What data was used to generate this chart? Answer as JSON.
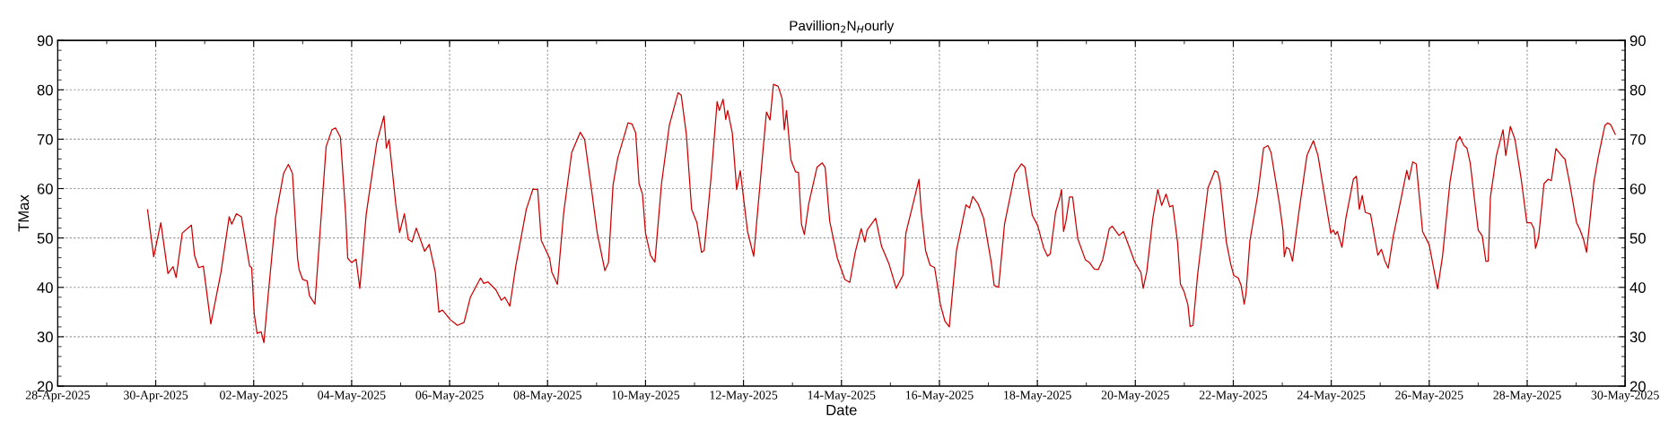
{
  "chart_data": {
    "type": "line",
    "title": "Pavillion$_{2}$N$_{H}$ourly",
    "xlabel": "Date",
    "ylabel": "TMax",
    "xlim": [
      "2025-04-28",
      "2025-05-30"
    ],
    "xticks": [
      {
        "value": "2025-04-28",
        "label": "28-Apr-2025"
      },
      {
        "value": "2025-04-30",
        "label": "30-Apr-2025"
      },
      {
        "value": "2025-05-02",
        "label": "02-May-2025"
      },
      {
        "value": "2025-05-04",
        "label": "04-May-2025"
      },
      {
        "value": "2025-05-06",
        "label": "06-May-2025"
      },
      {
        "value": "2025-05-08",
        "label": "08-May-2025"
      },
      {
        "value": "2025-05-10",
        "label": "10-May-2025"
      },
      {
        "value": "2025-05-12",
        "label": "12-May-2025"
      },
      {
        "value": "2025-05-14",
        "label": "14-May-2025"
      },
      {
        "value": "2025-05-16",
        "label": "16-May-2025"
      },
      {
        "value": "2025-05-18",
        "label": "18-May-2025"
      },
      {
        "value": "2025-05-20",
        "label": "20-May-2025"
      },
      {
        "value": "2025-05-22",
        "label": "22-May-2025"
      },
      {
        "value": "2025-05-24",
        "label": "24-May-2025"
      },
      {
        "value": "2025-05-26",
        "label": "26-May-2025"
      },
      {
        "value": "2025-05-28",
        "label": "28-May-2025"
      },
      {
        "value": "2025-05-30",
        "label": "30-May-2025"
      }
    ],
    "ylim": [
      20,
      90
    ],
    "yticks": [
      20,
      30,
      40,
      50,
      60,
      70,
      80,
      90
    ],
    "y2lim": [
      20,
      90
    ],
    "y2ticks": [
      20,
      30,
      40,
      50,
      60,
      70,
      80,
      90
    ],
    "grid": true,
    "marker": "none",
    "line_style": "solid",
    "series": [
      {
        "color": "#cc0000",
        "x": [
          "2025-04-29T20:00",
          "2025-04-29T23:00",
          "2025-04-30T02:30",
          "2025-04-30T06:00",
          "2025-04-30T08:30",
          "2025-04-30T10:00",
          "2025-04-30T13:00",
          "2025-04-30T17:30",
          "2025-04-30T19:00",
          "2025-04-30T21:00",
          "2025-04-30T23:20",
          "2025-05-01T03:00",
          "2025-05-01T08:00",
          "2025-05-01T12:00",
          "2025-05-01T13:15",
          "2025-05-01T15:30",
          "2025-05-01T18:00",
          "2025-05-01T22:00",
          "2025-05-01T23:00",
          "2025-05-02T00:15",
          "2025-05-02T01:40",
          "2025-05-02T03:40",
          "2025-05-02T05:00",
          "2025-05-02T07:00",
          "2025-05-02T10:40",
          "2025-05-02T14:40",
          "2025-05-02T17:00",
          "2025-05-02T19:00",
          "2025-05-02T21:30",
          "2025-05-02T22:15",
          "2025-05-03T00:00",
          "2025-05-03T02:10",
          "2025-05-03T03:20",
          "2025-05-03T06:00",
          "2025-05-03T11:30",
          "2025-05-03T14:20",
          "2025-05-03T16:05",
          "2025-05-03T18:30",
          "2025-05-03T21:00",
          "2025-05-03T22:05",
          "2025-05-04T00:00",
          "2025-05-04T02:10",
          "2025-05-04T04:00",
          "2025-05-04T07:10",
          "2025-05-04T12:20",
          "2025-05-04T15:50",
          "2025-05-04T17:00",
          "2025-05-04T18:20",
          "2025-05-04T21:35",
          "2025-05-04T23:30",
          "2025-05-05T01:50",
          "2025-05-05T03:45",
          "2025-05-05T05:35",
          "2025-05-05T07:40",
          "2025-05-05T11:45",
          "2025-05-05T14:00",
          "2025-05-05T17:00",
          "2025-05-05T18:45",
          "2025-05-05T20:30",
          "2025-05-06T00:15",
          "2025-05-06T03:50",
          "2025-05-06T07:05",
          "2025-05-06T10:10",
          "2025-05-06T15:10",
          "2025-05-06T16:45",
          "2025-05-06T18:50",
          "2025-05-06T22:40",
          "2025-05-07T01:20",
          "2025-05-07T03:05",
          "2025-05-07T05:30",
          "2025-05-07T08:25",
          "2025-05-07T13:35",
          "2025-05-07T16:50",
          "2025-05-07T19:10",
          "2025-05-07T20:55",
          "2025-05-08T01:00",
          "2025-05-08T02:05",
          "2025-05-08T04:50",
          "2025-05-08T07:55",
          "2025-05-08T11:50",
          "2025-05-08T16:00",
          "2025-05-08T18:10",
          "2025-05-08T21:50",
          "2025-05-09T00:20",
          "2025-05-09T04:05",
          "2025-05-09T05:50",
          "2025-05-09T08:05",
          "2025-05-09T10:20",
          "2025-05-09T15:25",
          "2025-05-09T17:20",
          "2025-05-09T19:10",
          "2025-05-09T20:50",
          "2025-05-09T22:30",
          "2025-05-10T00:00",
          "2025-05-10T02:25",
          "2025-05-10T04:35",
          "2025-05-10T07:50",
          "2025-05-10T11:40",
          "2025-05-10T15:55",
          "2025-05-10T17:30",
          "2025-05-10T20:00",
          "2025-05-10T22:35",
          "2025-05-11T01:10",
          "2025-05-11T03:25",
          "2025-05-11T04:45",
          "2025-05-11T08:10",
          "2025-05-11T11:05",
          "2025-05-11T12:10",
          "2025-05-11T14:00",
          "2025-05-11T15:20",
          "2025-05-11T16:15",
          "2025-05-11T18:30",
          "2025-05-11T20:40",
          "2025-05-11T22:25",
          "2025-05-12T02:00",
          "2025-05-12T05:00",
          "2025-05-12T09:20",
          "2025-05-12T11:15",
          "2025-05-12T13:00",
          "2025-05-12T14:40",
          "2025-05-12T17:00",
          "2025-05-12T18:55",
          "2025-05-12T20:00",
          "2025-05-12T21:05",
          "2025-05-12T23:15",
          "2025-05-13T01:30",
          "2025-05-13T02:55",
          "2025-05-13T04:25",
          "2025-05-13T05:50",
          "2025-05-13T08:00",
          "2025-05-13T12:00",
          "2025-05-13T14:35",
          "2025-05-13T16:00",
          "2025-05-13T18:15",
          "2025-05-13T22:00",
          "2025-05-14T01:40",
          "2025-05-14T04:05",
          "2025-05-14T06:45",
          "2025-05-14T09:40",
          "2025-05-14T11:25",
          "2025-05-14T12:35",
          "2025-05-14T16:45",
          "2025-05-14T19:40",
          "2025-05-14T23:20",
          "2025-05-15T02:50",
          "2025-05-15T06:10",
          "2025-05-15T07:35",
          "2025-05-15T14:00",
          "2025-05-15T15:05",
          "2025-05-15T17:15",
          "2025-05-15T19:25",
          "2025-05-15T21:40",
          "2025-05-16T00:30",
          "2025-05-16T02:40",
          "2025-05-16T04:50",
          "2025-05-16T08:20",
          "2025-05-16T13:00",
          "2025-05-16T14:45",
          "2025-05-16T16:20",
          "2025-05-16T18:50",
          "2025-05-16T21:40",
          "2025-05-17T01:25",
          "2025-05-17T02:50",
          "2025-05-17T05:00",
          "2025-05-17T07:55",
          "2025-05-17T13:00",
          "2025-05-17T16:15",
          "2025-05-17T17:55",
          "2025-05-17T21:30",
          "2025-05-18T00:10",
          "2025-05-18T03:05",
          "2025-05-18T05:00",
          "2025-05-18T06:20",
          "2025-05-18T08:55",
          "2025-05-18T11:05",
          "2025-05-18T11:50",
          "2025-05-18T12:50",
          "2025-05-18T14:00",
          "2025-05-18T15:45",
          "2025-05-18T17:15",
          "2025-05-18T19:50",
          "2025-05-18T23:30",
          "2025-05-19T01:20",
          "2025-05-19T03:55",
          "2025-05-19T05:50",
          "2025-05-19T08:00",
          "2025-05-19T11:15",
          "2025-05-19T12:40",
          "2025-05-19T16:00",
          "2025-05-19T18:10",
          "2025-05-19T20:05",
          "2025-05-19T23:50",
          "2025-05-20T02:45",
          "2025-05-20T03:50",
          "2025-05-20T05:35",
          "2025-05-20T08:35",
          "2025-05-20T11:00",
          "2025-05-20T12:55",
          "2025-05-20T15:05",
          "2025-05-20T16:50",
          "2025-05-20T18:20",
          "2025-05-20T20:40",
          "2025-05-20T22:05",
          "2025-05-20T23:50",
          "2025-05-21T01:45",
          "2025-05-21T02:50",
          "2025-05-21T04:15",
          "2025-05-21T06:30",
          "2025-05-21T11:35",
          "2025-05-21T14:55",
          "2025-05-21T16:20",
          "2025-05-21T17:30",
          "2025-05-21T20:35",
          "2025-05-21T22:45",
          "2025-05-22T00:15",
          "2025-05-22T02:25",
          "2025-05-22T03:50",
          "2025-05-22T05:20",
          "2025-05-22T06:15",
          "2025-05-22T08:10",
          "2025-05-22T11:55",
          "2025-05-22T14:50",
          "2025-05-22T17:00",
          "2025-05-22T18:30",
          "2025-05-22T22:35",
          "2025-05-23T00:20",
          "2025-05-23T01:00",
          "2025-05-23T02:00",
          "2025-05-23T03:30",
          "2025-05-23T05:00",
          "2025-05-23T08:20",
          "2025-05-23T12:05",
          "2025-05-23T15:15",
          "2025-05-23T17:30",
          "2025-05-23T20:50",
          "2025-05-23T23:45",
          "2025-05-24T01:00",
          "2025-05-24T02:00",
          "2025-05-24T03:00",
          "2025-05-24T05:15",
          "2025-05-24T07:10",
          "2025-05-24T10:50",
          "2025-05-24T12:20",
          "2025-05-24T13:45",
          "2025-05-24T15:10",
          "2025-05-24T16:40",
          "2025-05-24T19:15",
          "2025-05-24T22:50",
          "2025-05-25T00:35",
          "2025-05-25T02:20",
          "2025-05-25T03:55",
          "2025-05-25T06:25",
          "2025-05-25T10:05",
          "2025-05-25T13:00",
          "2025-05-25T14:05",
          "2025-05-25T15:55",
          "2025-05-25T17:40",
          "2025-05-25T20:45",
          "2025-05-26T00:00",
          "2025-05-26T04:05",
          "2025-05-26T06:30",
          "2025-05-26T10:10",
          "2025-05-26T13:25",
          "2025-05-26T15:00",
          "2025-05-26T17:00",
          "2025-05-26T18:30",
          "2025-05-26T20:05",
          "2025-05-26T22:35",
          "2025-05-27T00:00",
          "2025-05-27T02:00",
          "2025-05-27T03:45",
          "2025-05-27T04:55",
          "2025-05-27T06:00",
          "2025-05-27T08:55",
          "2025-05-27T12:10",
          "2025-05-27T13:30",
          "2025-05-27T15:45",
          "2025-05-27T18:00",
          "2025-05-27T21:05",
          "2025-05-27T23:50",
          "2025-05-28T01:50",
          "2025-05-28T03:20",
          "2025-05-28T04:05",
          "2025-05-28T05:35",
          "2025-05-28T08:15",
          "2025-05-28T10:20",
          "2025-05-28T11:50",
          "2025-05-28T14:05",
          "2025-05-28T17:25",
          "2025-05-28T18:30",
          "2025-05-28T21:00",
          "2025-05-29T00:10",
          "2025-05-29T01:50",
          "2025-05-29T03:35",
          "2025-05-29T05:05",
          "2025-05-29T06:05",
          "2025-05-29T08:40",
          "2025-05-29T10:50",
          "2025-05-29T14:05",
          "2025-05-29T15:30",
          "2025-05-29T17:00",
          "2025-05-29T19:10"
        ],
        "values": [
          55.7,
          46.2,
          53.1,
          42.8,
          44.2,
          42.0,
          51.0,
          52.6,
          46.5,
          44.0,
          44.3,
          32.6,
          43.1,
          54.3,
          52.8,
          54.9,
          54.3,
          44.3,
          44.0,
          34.7,
          30.7,
          31.0,
          28.8,
          38.0,
          54.0,
          63.1,
          64.9,
          63.1,
          45.9,
          43.6,
          41.6,
          41.3,
          38.3,
          36.6,
          68.5,
          71.9,
          72.3,
          70.4,
          55.2,
          45.9,
          45.0,
          45.7,
          39.8,
          54.9,
          69.4,
          74.7,
          68.2,
          69.9,
          57.0,
          51.1,
          54.9,
          49.7,
          49.2,
          52.0,
          47.3,
          48.7,
          43.0,
          35.0,
          35.4,
          33.5,
          32.3,
          32.9,
          38.0,
          41.9,
          40.8,
          41.1,
          39.5,
          37.4,
          38.0,
          36.2,
          44.3,
          55.8,
          59.9,
          59.8,
          49.5,
          45.9,
          43.1,
          40.6,
          55.2,
          67.3,
          71.4,
          69.9,
          58.9,
          51.0,
          43.4,
          45.0,
          60.7,
          66.1,
          73.3,
          73.1,
          71.3,
          61.0,
          58.9,
          51.0,
          46.5,
          45.1,
          61.0,
          72.8,
          79.4,
          78.9,
          71.0,
          55.8,
          53.1,
          47.1,
          47.5,
          62.5,
          77.6,
          75.8,
          78.1,
          74.0,
          75.8,
          71.3,
          59.8,
          63.6,
          51.3,
          46.3,
          66.7,
          75.5,
          73.9,
          81.1,
          80.7,
          78.2,
          71.9,
          75.8,
          65.8,
          63.4,
          63.3,
          52.8,
          50.7,
          57.0,
          64.3,
          65.2,
          64.3,
          53.4,
          45.9,
          41.6,
          41.0,
          47.1,
          51.9,
          49.2,
          51.6,
          54.0,
          48.3,
          44.7,
          39.8,
          42.5,
          51.0,
          61.9,
          55.5,
          47.4,
          44.5,
          44.0,
          36.5,
          33.2,
          32.0,
          47.4,
          56.7,
          56.1,
          58.4,
          57.0,
          54.0,
          45.0,
          40.4,
          40.0,
          52.8,
          63.1,
          65.0,
          64.3,
          54.6,
          52.5,
          48.0,
          46.3,
          46.8,
          55.2,
          58.3,
          59.8,
          51.3,
          53.4,
          58.3,
          58.3,
          49.8,
          45.6,
          45.1,
          43.7,
          43.6,
          45.6,
          51.9,
          52.4,
          50.5,
          51.3,
          49.2,
          45.0,
          43.0,
          39.8,
          43.1,
          54.0,
          59.8,
          56.6,
          58.9,
          56.3,
          56.6,
          49.2,
          40.7,
          39.2,
          36.5,
          32.1,
          32.3,
          42.5,
          60.1,
          63.6,
          63.3,
          61.3,
          49.2,
          44.7,
          42.4,
          41.9,
          40.4,
          36.6,
          38.9,
          49.5,
          58.6,
          68.2,
          68.7,
          67.3,
          57.0,
          51.6,
          46.2,
          48.1,
          47.7,
          45.3,
          55.8,
          66.7,
          69.7,
          66.7,
          58.3,
          51.0,
          51.6,
          50.7,
          51.3,
          48.1,
          54.0,
          61.9,
          62.5,
          55.8,
          58.6,
          55.2,
          54.8,
          46.5,
          47.7,
          45.3,
          43.9,
          50.4,
          57.7,
          63.7,
          61.8,
          65.4,
          65.0,
          51.3,
          48.6,
          39.7,
          46.2,
          61.3,
          69.4,
          70.5,
          68.7,
          68.2,
          65.2,
          56.4,
          51.6,
          50.4,
          45.3,
          45.3,
          58.3,
          66.7,
          71.9,
          66.7,
          72.6,
          70.0,
          61.9,
          53.1,
          53.1,
          51.9,
          47.9,
          50.1,
          61.0,
          61.9,
          61.6,
          68.1,
          66.4,
          66.0,
          60.7,
          53.1,
          51.7,
          49.8,
          47.1,
          51.0,
          61.3,
          66.4,
          72.8,
          73.3,
          72.9,
          71.0
        ]
      }
    ]
  }
}
